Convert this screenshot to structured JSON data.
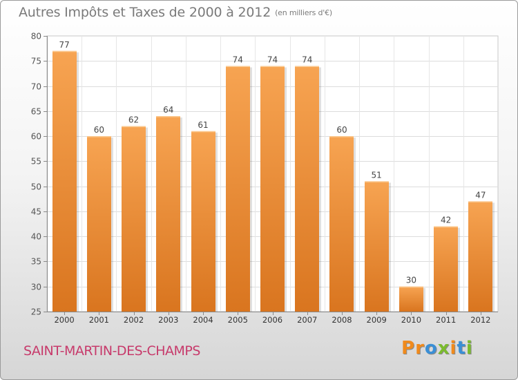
{
  "title": {
    "main": "Autres Impôts et Taxes de 2000 à 2012",
    "unit": "(en milliers d'€)"
  },
  "footer": {
    "city": "SAINT-MARTIN-DES-CHAMPS",
    "logo": "Proxiti"
  },
  "colors": {
    "bar_light": "#f7a452",
    "bar_dark": "#d9751f",
    "city_text": "#c73a6b",
    "logo_letters": [
      "#f08a1c",
      "#f08a1c",
      "#3a8fd6",
      "#7bbb2e",
      "#f08a1c",
      "#3a8fd6",
      "#7bbb2e"
    ]
  },
  "chart_data": {
    "type": "bar",
    "categories": [
      "2000",
      "2001",
      "2002",
      "2003",
      "2004",
      "2005",
      "2006",
      "2007",
      "2008",
      "2009",
      "2010",
      "2011",
      "2012"
    ],
    "values": [
      77,
      60,
      62,
      64,
      61,
      74,
      74,
      74,
      60,
      51,
      30,
      42,
      47
    ],
    "title": "Autres Impôts et Taxes de 2000 à 2012",
    "subtitle": "(en milliers d'€)",
    "xlabel": "",
    "ylabel": "",
    "ylim": [
      25,
      80
    ],
    "yticks": [
      25,
      30,
      35,
      40,
      45,
      50,
      55,
      60,
      65,
      70,
      75,
      80
    ],
    "grid": true,
    "legend": "none"
  }
}
